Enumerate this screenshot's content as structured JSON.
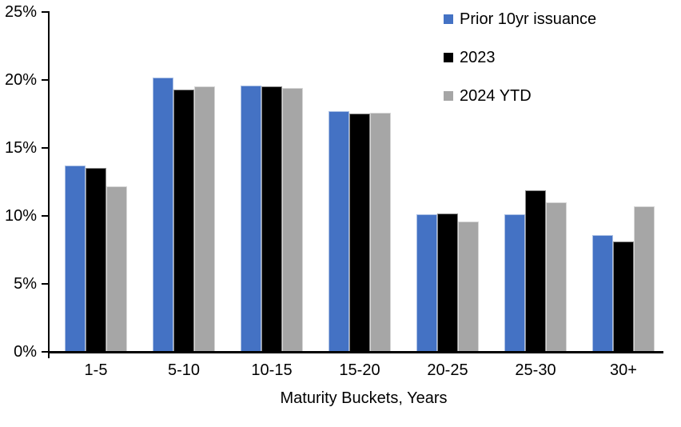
{
  "chart_data": {
    "type": "bar",
    "title": "",
    "categories": [
      "1-5",
      "5-10",
      "10-15",
      "15-20",
      "20-25",
      "25-30",
      "30+"
    ],
    "series": [
      {
        "name": "Prior 10yr issuance",
        "color": "#4472C4",
        "values": [
          13.7,
          20.2,
          19.6,
          17.7,
          10.1,
          10.1,
          8.6
        ]
      },
      {
        "name": "2023",
        "color": "#000000",
        "values": [
          13.5,
          19.3,
          19.5,
          17.5,
          10.2,
          11.9,
          8.1
        ]
      },
      {
        "name": "2024 YTD",
        "color": "#A6A6A6",
        "values": [
          12.2,
          19.5,
          19.4,
          17.6,
          9.6,
          11.0,
          10.7
        ]
      }
    ],
    "xlabel": "Maturity Buckets, Years",
    "ylabel": "",
    "ylim": [
      0,
      25
    ],
    "ytick_step": 5,
    "ytick_labels": [
      "0%",
      "5%",
      "10%",
      "15%",
      "20%",
      "25%"
    ],
    "legend_position": "top-right",
    "grid": false
  },
  "colors": {
    "background": "#FFFFFF",
    "axis": "#000000",
    "text": "#000000"
  }
}
